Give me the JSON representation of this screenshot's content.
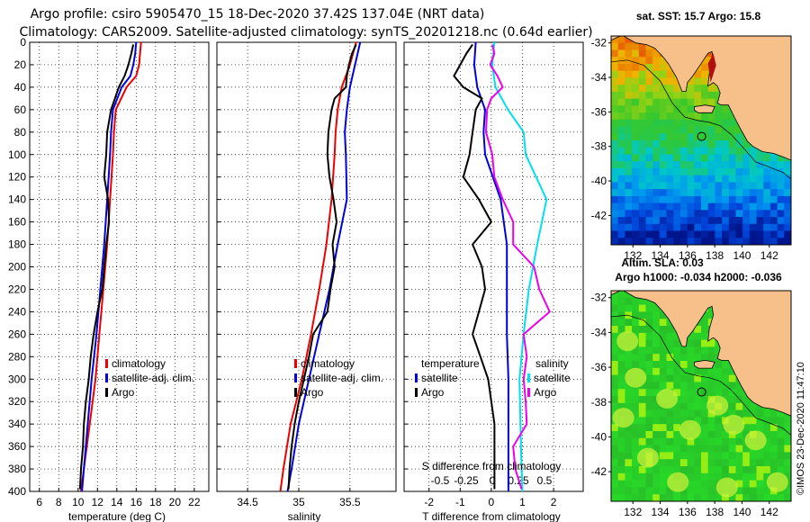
{
  "title": {
    "line1": "Argo profile: csiro 5905470_15 18-Dec-2020 37.42S 137.04E (NRT data)",
    "line2": "Climatology: CARS2009. Satellite-adjusted climatology: synTS_20201218.nc (0.64d earlier)"
  },
  "colors": {
    "climatology": "#ee0000",
    "satellite": "#0000dd",
    "argo": "#000000",
    "salinity_sat": "#00e0f0",
    "salinity_argo": "#ee00ee",
    "land": "#f7c08a",
    "coast": "#000000"
  },
  "chart_data": [
    {
      "type": "line",
      "panel": "temperature",
      "xlabel": "temperature (deg C)",
      "ylabel": "",
      "xlim": [
        5,
        23.5
      ],
      "ylim": [
        400,
        0
      ],
      "xticks": [
        "6",
        "8",
        "10",
        "12",
        "14",
        "16",
        "18",
        "20",
        "22"
      ],
      "xtick_values": [
        6,
        8,
        10,
        12,
        14,
        16,
        18,
        20,
        22
      ],
      "yticks": [
        "0",
        "20",
        "40",
        "60",
        "80",
        "100",
        "120",
        "140",
        "160",
        "180",
        "200",
        "220",
        "240",
        "260",
        "280",
        "300",
        "320",
        "340",
        "360",
        "380",
        "400"
      ],
      "ytick_values": [
        0,
        20,
        40,
        60,
        80,
        100,
        120,
        140,
        160,
        180,
        200,
        220,
        240,
        260,
        280,
        300,
        320,
        340,
        360,
        380,
        400
      ],
      "legend": {
        "placement": "right-lower",
        "entries": [
          "climatology",
          "satellite-adj. clim.",
          "Argo"
        ]
      },
      "series": [
        {
          "name": "climatology",
          "color_key": "climatology",
          "depth": [
            0,
            10,
            20,
            30,
            40,
            60,
            80,
            100,
            140,
            180,
            220,
            260,
            300,
            340,
            380,
            400
          ],
          "values": [
            16.5,
            16.4,
            16.3,
            16.0,
            15.0,
            13.9,
            13.7,
            13.6,
            13.3,
            13.0,
            12.6,
            12.2,
            11.8,
            11.2,
            10.6,
            10.3
          ]
        },
        {
          "name": "satellite-adj. clim.",
          "color_key": "satellite",
          "depth": [
            0,
            10,
            20,
            30,
            40,
            60,
            80,
            100,
            140,
            180,
            220,
            260,
            300,
            340,
            380,
            400
          ],
          "values": [
            16.0,
            15.9,
            15.7,
            15.4,
            14.5,
            13.6,
            13.4,
            13.3,
            13.0,
            12.7,
            12.3,
            11.9,
            11.4,
            11.0,
            10.6,
            10.4
          ]
        },
        {
          "name": "Argo",
          "color_key": "argo",
          "depth": [
            2,
            10,
            20,
            30,
            40,
            50,
            60,
            80,
            100,
            120,
            140,
            160,
            180,
            200,
            220,
            240,
            260,
            280,
            300,
            320,
            340,
            360,
            380,
            398
          ],
          "values": [
            15.7,
            15.5,
            15.2,
            14.8,
            14.2,
            13.8,
            13.4,
            13.0,
            12.9,
            12.7,
            13.1,
            13.2,
            12.9,
            12.7,
            12.5,
            12.0,
            11.6,
            11.3,
            11.1,
            10.8,
            10.6,
            10.5,
            10.3,
            10.2
          ]
        }
      ]
    },
    {
      "type": "line",
      "panel": "salinity",
      "xlabel": "salinity",
      "ylabel": "",
      "xlim": [
        34.2,
        35.95
      ],
      "ylim": [
        400,
        0
      ],
      "xticks": [
        "34.5",
        "35",
        "35.5"
      ],
      "xtick_values": [
        34.5,
        35,
        35.5
      ],
      "legend": {
        "placement": "right-lower",
        "entries": [
          "climatology",
          "satellite-adj. clim.",
          "Argo"
        ]
      },
      "series": [
        {
          "name": "climatology",
          "color_key": "climatology",
          "depth": [
            0,
            20,
            40,
            60,
            80,
            100,
            140,
            180,
            220,
            260,
            300,
            340,
            380,
            400
          ],
          "values": [
            35.56,
            35.5,
            35.42,
            35.38,
            35.36,
            35.35,
            35.32,
            35.27,
            35.2,
            35.12,
            35.03,
            34.92,
            34.85,
            34.82
          ]
        },
        {
          "name": "satellite-adj. clim.",
          "color_key": "satellite",
          "depth": [
            0,
            20,
            40,
            60,
            80,
            100,
            140,
            180,
            220,
            260,
            300,
            340,
            380,
            400
          ],
          "values": [
            35.6,
            35.55,
            35.5,
            35.47,
            35.45,
            35.46,
            35.47,
            35.38,
            35.3,
            35.2,
            35.1,
            35.0,
            34.93,
            34.89
          ]
        },
        {
          "name": "Argo",
          "color_key": "argo",
          "depth": [
            2,
            10,
            20,
            30,
            40,
            50,
            60,
            80,
            100,
            120,
            140,
            160,
            180,
            200,
            220,
            240,
            260,
            280,
            300,
            320,
            340,
            360,
            380,
            398
          ],
          "values": [
            35.56,
            35.52,
            35.49,
            35.47,
            35.46,
            35.35,
            35.32,
            35.29,
            35.28,
            35.3,
            35.34,
            35.37,
            35.33,
            35.35,
            35.31,
            35.28,
            35.14,
            35.1,
            35.05,
            35.0,
            34.96,
            34.93,
            34.91,
            34.9
          ]
        }
      ]
    },
    {
      "type": "line",
      "panel": "difference",
      "xlabel": "T difference from climatology",
      "secondary_xlabel": "S difference from climatology",
      "xlim": [
        -2.8,
        2.95
      ],
      "ylim": [
        400,
        0
      ],
      "xticks": [
        "-2",
        "-1",
        "0",
        "1",
        "2"
      ],
      "xtick_values": [
        -2,
        -1,
        0,
        1,
        2
      ],
      "secondary_xticks": [
        "-0.5",
        "-0.25",
        "0",
        "0.25",
        "0.5"
      ],
      "secondary_xtick_values": [
        -0.5,
        -0.25,
        0,
        0.25,
        0.5
      ],
      "legend": {
        "placement": "lower",
        "temperature_heading": "temperature",
        "salinity_heading": "salinity",
        "entries": [
          "satellite",
          "Argo",
          "satellite",
          "Argo"
        ]
      },
      "series": [
        {
          "name": "T satellite",
          "color_key": "satellite",
          "depth": [
            0,
            20,
            40,
            60,
            80,
            100,
            140,
            180,
            220,
            260,
            300,
            340,
            380,
            400
          ],
          "values": [
            -0.5,
            -0.55,
            -0.45,
            -0.2,
            -0.25,
            -0.2,
            0.3,
            0.5,
            0.5,
            0.5,
            0.55,
            0.55,
            0.55,
            0.55
          ]
        },
        {
          "name": "T Argo",
          "color_key": "argo",
          "depth": [
            2,
            10,
            20,
            30,
            40,
            50,
            60,
            80,
            100,
            120,
            140,
            160,
            180,
            200,
            220,
            240,
            260,
            280,
            300,
            320,
            340,
            360,
            380,
            398
          ],
          "values": [
            -0.6,
            -0.8,
            -1.0,
            -1.2,
            -0.9,
            -0.3,
            -0.5,
            -0.6,
            -0.7,
            -0.9,
            -0.4,
            0.0,
            -0.6,
            -0.3,
            -0.2,
            -0.4,
            -0.6,
            -0.35,
            -0.1,
            0.0,
            0.1,
            0.1,
            0.1,
            0.1
          ]
        },
        {
          "name": "S satellite",
          "color_key": "salinity_sat",
          "depth": [
            0,
            20,
            40,
            60,
            80,
            100,
            140,
            180,
            220,
            260,
            300,
            340,
            380,
            400
          ],
          "values": [
            0.02,
            0.0,
            0.03,
            0.15,
            0.3,
            0.32,
            0.52,
            0.43,
            0.35,
            0.3,
            0.26,
            0.27,
            0.28,
            0.29
          ]
        },
        {
          "name": "S Argo",
          "color_key": "salinity_argo",
          "depth": [
            2,
            10,
            20,
            30,
            40,
            50,
            60,
            80,
            100,
            120,
            140,
            160,
            180,
            200,
            220,
            240,
            260,
            280,
            300,
            320,
            340,
            360,
            380,
            398
          ],
          "values": [
            0.0,
            0.02,
            -0.02,
            0.05,
            0.1,
            -0.01,
            -0.05,
            -0.06,
            0.0,
            0.02,
            0.1,
            0.2,
            0.2,
            0.4,
            0.45,
            0.55,
            0.3,
            0.33,
            0.3,
            0.32,
            0.33,
            0.2,
            0.22,
            0.28
          ]
        }
      ]
    }
  ],
  "maps": {
    "top": {
      "title": "sat. SST: 15.7 Argo: 15.8",
      "footer": "Altim. SLA: 0.03",
      "yticks": [
        "-32",
        "-34",
        "-36",
        "-38",
        "-40",
        "-42"
      ],
      "ytick_values": [
        -32,
        -34,
        -36,
        -38,
        -40,
        -42
      ],
      "xticks": [
        "132",
        "134",
        "136",
        "138",
        "140",
        "142"
      ],
      "xtick_values": [
        132,
        134,
        136,
        138,
        140,
        142
      ]
    },
    "bottom": {
      "title": "Argo h1000: -0.034 h2000: -0.036",
      "yticks": [
        "-32",
        "-34",
        "-36",
        "-38",
        "-40",
        "-42"
      ],
      "ytick_values": [
        -32,
        -34,
        -36,
        -38,
        -40,
        -42
      ],
      "xticks": [
        "132",
        "134",
        "136",
        "138",
        "140",
        "142"
      ],
      "xtick_values": [
        132,
        134,
        136,
        138,
        140,
        142
      ]
    },
    "lon_range": [
      130.4,
      143.6
    ],
    "lat_range": [
      -43.7,
      -31.6
    ],
    "float_position": {
      "lon": 137.04,
      "lat": -37.42
    }
  },
  "credit": "©IMOS 23-Dec-2020 11:47:10"
}
